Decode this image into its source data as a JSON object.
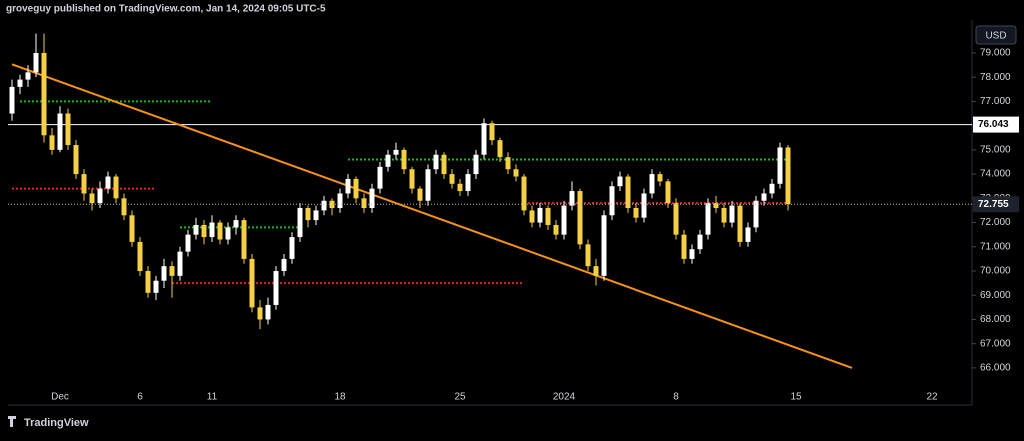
{
  "header": "groveguy published on TradingView.com, Jan 14, 2024 09:05 UTC-5",
  "brand": "TradingView",
  "chart_data": {
    "type": "candlestick",
    "currency": "USD",
    "categories": [
      null,
      null,
      null,
      null,
      null,
      null,
      "Dec",
      null,
      null,
      null,
      null,
      null,
      null,
      null,
      null,
      null,
      "6",
      null,
      null,
      null,
      null,
      null,
      null,
      null,
      null,
      "11",
      null,
      null,
      null,
      null,
      null,
      null,
      null,
      null,
      null,
      null,
      null,
      null,
      null,
      null,
      null,
      "18",
      null,
      null,
      null,
      null,
      null,
      null,
      null,
      null,
      null,
      null,
      null,
      null,
      null,
      null,
      "25",
      null,
      null,
      null,
      null,
      null,
      null,
      null,
      null,
      null,
      null,
      null,
      null,
      "2024",
      null,
      null,
      null,
      null,
      null,
      null,
      null,
      null,
      null,
      null,
      null,
      null,
      null,
      "8",
      null,
      null,
      null,
      null,
      null,
      null,
      null,
      null,
      null,
      null,
      null,
      null,
      null,
      null,
      "15",
      null,
      null,
      null,
      null,
      null,
      null,
      null,
      null,
      null,
      null,
      null,
      null,
      null,
      null,
      null,
      null,
      "22",
      null,
      null,
      null,
      null
    ],
    "series": [
      {
        "up_color": "#ffffff",
        "down_color": "#f5d142",
        "open": [
          76.5,
          77.6,
          77.9,
          78.2,
          79.0,
          75.6,
          75.0,
          76.5,
          75.2,
          74.0,
          73.2,
          72.8,
          73.4,
          73.9,
          73.0,
          72.3,
          71.2,
          70.0,
          69.1,
          69.6,
          70.2,
          69.8,
          70.8,
          71.5,
          71.9,
          71.4,
          72.0,
          71.3,
          71.8,
          72.1,
          70.5,
          68.5,
          68.0,
          68.6,
          70.0,
          70.5,
          71.4,
          72.6,
          72.1,
          72.5,
          72.9,
          72.6,
          73.2,
          73.8,
          73.0,
          72.6,
          73.4,
          74.3,
          74.8,
          75.0,
          74.2,
          73.4,
          72.9,
          74.2,
          74.8,
          74.0,
          73.6,
          73.3,
          74.0,
          74.8,
          76.1,
          75.4,
          74.7,
          74.2,
          73.9,
          72.5,
          72.0,
          72.6,
          71.9,
          71.5,
          72.7,
          73.3,
          71.1,
          70.2,
          69.8,
          72.3,
          73.5,
          73.9,
          72.6,
          72.2,
          73.2,
          74.0,
          73.7,
          72.8,
          71.5,
          70.5,
          70.9,
          71.5,
          72.8,
          72.6,
          72.0,
          72.7,
          71.2,
          71.8,
          72.9,
          73.2,
          73.6,
          75.1,
          null,
          null,
          null,
          null,
          null,
          null,
          null,
          null,
          null,
          null,
          null,
          null,
          null,
          null,
          null,
          null,
          null,
          null,
          null,
          null,
          null,
          null
        ],
        "high": [
          77.9,
          78.1,
          78.5,
          79.8,
          79.8,
          75.9,
          76.8,
          76.7,
          75.4,
          74.2,
          73.4,
          73.7,
          74.1,
          74.0,
          73.2,
          72.5,
          71.4,
          70.2,
          69.8,
          70.5,
          70.4,
          71.0,
          71.7,
          72.2,
          72.1,
          72.3,
          72.1,
          72.0,
          72.3,
          72.2,
          70.7,
          68.8,
          68.9,
          70.2,
          70.7,
          71.6,
          72.8,
          72.7,
          72.7,
          73.1,
          73.0,
          73.4,
          74.0,
          73.9,
          73.2,
          73.6,
          74.5,
          75.0,
          75.3,
          75.1,
          74.3,
          73.5,
          74.4,
          75.0,
          74.9,
          74.2,
          73.8,
          74.2,
          75.0,
          76.3,
          76.2,
          75.5,
          74.9,
          74.4,
          74.0,
          72.7,
          72.8,
          72.7,
          72.1,
          72.9,
          73.7,
          73.4,
          71.3,
          70.5,
          72.5,
          73.7,
          74.1,
          74.0,
          72.8,
          73.4,
          74.2,
          74.1,
          73.8,
          73.0,
          71.7,
          71.1,
          71.7,
          73.0,
          73.1,
          72.8,
          72.9,
          72.8,
          72.0,
          73.1,
          73.4,
          73.8,
          75.3,
          75.2,
          null,
          null,
          null,
          null,
          null,
          null,
          null,
          null,
          null,
          null,
          null,
          null,
          null,
          null,
          null,
          null,
          null,
          null,
          null,
          null,
          null,
          null
        ],
        "low": [
          76.2,
          77.3,
          77.6,
          78.0,
          75.3,
          74.8,
          74.9,
          75.0,
          73.8,
          72.9,
          72.5,
          72.6,
          73.2,
          72.8,
          72.1,
          71.0,
          69.8,
          68.9,
          68.8,
          69.3,
          68.9,
          69.6,
          70.6,
          71.3,
          71.1,
          71.2,
          71.1,
          71.1,
          71.5,
          70.3,
          68.3,
          67.6,
          67.8,
          68.4,
          69.8,
          70.3,
          71.2,
          71.8,
          71.9,
          72.3,
          72.3,
          72.4,
          73.0,
          72.8,
          72.4,
          72.4,
          73.2,
          74.1,
          74.6,
          74.0,
          73.2,
          72.6,
          72.7,
          74.0,
          73.8,
          73.4,
          73.1,
          73.1,
          73.8,
          74.6,
          75.2,
          74.5,
          74.0,
          73.7,
          72.3,
          71.8,
          71.8,
          71.7,
          71.3,
          71.3,
          72.5,
          70.9,
          70.0,
          69.4,
          69.6,
          72.1,
          73.3,
          72.4,
          72.0,
          72.0,
          73.0,
          73.5,
          72.6,
          71.3,
          70.3,
          70.3,
          70.7,
          71.3,
          72.4,
          71.8,
          71.8,
          71.0,
          71.0,
          71.6,
          72.7,
          73.0,
          73.4,
          72.5,
          null,
          null,
          null,
          null,
          null,
          null,
          null,
          null,
          null,
          null,
          null,
          null,
          null,
          null,
          null,
          null,
          null,
          null,
          null,
          null,
          null,
          null
        ],
        "close": [
          77.6,
          77.9,
          78.2,
          79.0,
          75.6,
          75.0,
          76.5,
          75.2,
          74.0,
          73.2,
          72.8,
          73.4,
          73.9,
          73.0,
          72.3,
          71.2,
          70.0,
          69.1,
          69.6,
          70.2,
          69.8,
          70.8,
          71.5,
          71.9,
          71.4,
          72.0,
          71.3,
          71.8,
          72.1,
          70.5,
          68.5,
          68.0,
          68.6,
          70.0,
          70.5,
          71.4,
          72.6,
          72.1,
          72.5,
          72.9,
          72.6,
          73.2,
          73.8,
          73.0,
          72.6,
          73.4,
          74.3,
          74.8,
          75.0,
          74.2,
          73.4,
          72.9,
          74.2,
          74.8,
          74.0,
          73.6,
          73.3,
          74.0,
          74.8,
          76.1,
          75.4,
          74.7,
          74.2,
          73.9,
          72.5,
          72.0,
          72.6,
          71.9,
          71.5,
          72.7,
          73.3,
          71.1,
          70.2,
          69.8,
          72.3,
          73.5,
          73.9,
          72.6,
          72.2,
          73.2,
          74.0,
          73.7,
          72.8,
          71.5,
          70.5,
          70.9,
          71.5,
          72.8,
          72.6,
          72.0,
          72.7,
          71.2,
          71.8,
          72.9,
          73.2,
          73.6,
          75.1,
          72.755,
          null,
          null,
          null,
          null,
          null,
          null,
          null,
          null,
          null,
          null,
          null,
          null,
          null,
          null,
          null,
          null,
          null,
          null,
          null,
          null,
          null,
          null
        ]
      }
    ],
    "ylim": [
      64.47,
      80.36
    ],
    "yticks": [
      {
        "value": 66,
        "label": "66.000"
      },
      {
        "value": 67,
        "label": "67.000"
      },
      {
        "value": 68,
        "label": "68.000"
      },
      {
        "value": 69,
        "label": "69.000"
      },
      {
        "value": 70,
        "label": "70.000"
      },
      {
        "value": 71,
        "label": "71.000"
      },
      {
        "value": 72,
        "label": "72.000"
      },
      {
        "value": 73,
        "label": "73.000"
      },
      {
        "value": 74,
        "label": "74.000"
      },
      {
        "value": 75,
        "label": "75.000"
      },
      {
        "value": 76,
        "label": "76.000"
      },
      {
        "value": 77,
        "label": "77.000"
      },
      {
        "value": 78,
        "label": "78.000"
      },
      {
        "value": 79,
        "label": "79.000"
      }
    ],
    "price_line": {
      "value": 76.043,
      "color": "#ffffff"
    },
    "trendline": {
      "x": [
        0,
        105
      ],
      "y": [
        78.53,
        66.0
      ],
      "color": "#f7931a"
    },
    "levels": [
      {
        "value": 77.0,
        "from": 1,
        "to": 25,
        "color": "#22b322"
      },
      {
        "value": 73.4,
        "from": 0,
        "to": 18,
        "color": "#e02424"
      },
      {
        "value": 71.8,
        "from": 21,
        "to": 36,
        "color": "#22b322"
      },
      {
        "value": 74.6,
        "from": 42,
        "to": 97,
        "color": "#22b322"
      },
      {
        "value": 69.5,
        "from": 20,
        "to": 64,
        "color": "#e02424"
      },
      {
        "value": 72.8,
        "from": 64,
        "to": 97,
        "color": "#e02424"
      }
    ]
  }
}
